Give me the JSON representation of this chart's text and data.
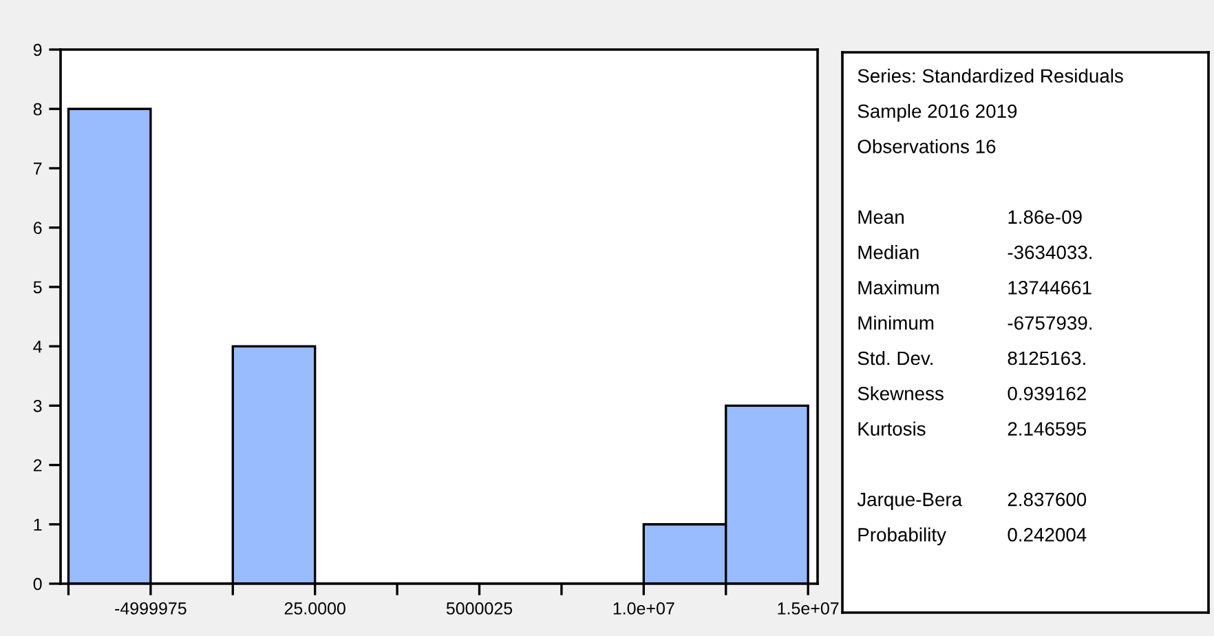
{
  "chart_data": {
    "type": "histogram",
    "bins": [
      -7499975,
      -4999975,
      -2499975,
      25,
      2500025,
      5000025,
      7500025,
      10000025,
      12500025,
      15000025
    ],
    "values": [
      8,
      0,
      4,
      0,
      0,
      0,
      0,
      1,
      3
    ],
    "color": "#99bbff",
    "xlim": [
      -7740000,
      15290000
    ],
    "xticks": [
      {
        "value": -7499975,
        "label": null
      },
      {
        "value": -4999975,
        "label": "-4999975"
      },
      {
        "value": -2499975,
        "label": null
      },
      {
        "value": 25,
        "label": "25.0000"
      },
      {
        "value": 2500025,
        "label": null
      },
      {
        "value": 5000025,
        "label": "5000025"
      },
      {
        "value": 7500025,
        "label": null
      },
      {
        "value": 10000025,
        "label": "1.0e+07"
      },
      {
        "value": 12500025,
        "label": null
      },
      {
        "value": 15000025,
        "label": "1.5e+07"
      }
    ],
    "ylim": [
      0,
      9
    ],
    "yticks": [
      0,
      1,
      2,
      3,
      4,
      5,
      6,
      7,
      8,
      9
    ],
    "grid": false,
    "annotations": [
      "Series: Standardized Residuals",
      "Sample 2016 2019",
      "Observations 16",
      "Mean",
      "1.86e-09",
      "Median",
      "-3634033.",
      "Maximum",
      "13744661",
      "Minimum",
      "-6757939.",
      "Std. Dev.",
      "8125163.",
      "Skewness",
      "0.939162",
      "Kurtosis",
      "2.146595",
      "Jarque-Bera",
      "2.837600",
      "Probability",
      "0.242004"
    ]
  }
}
